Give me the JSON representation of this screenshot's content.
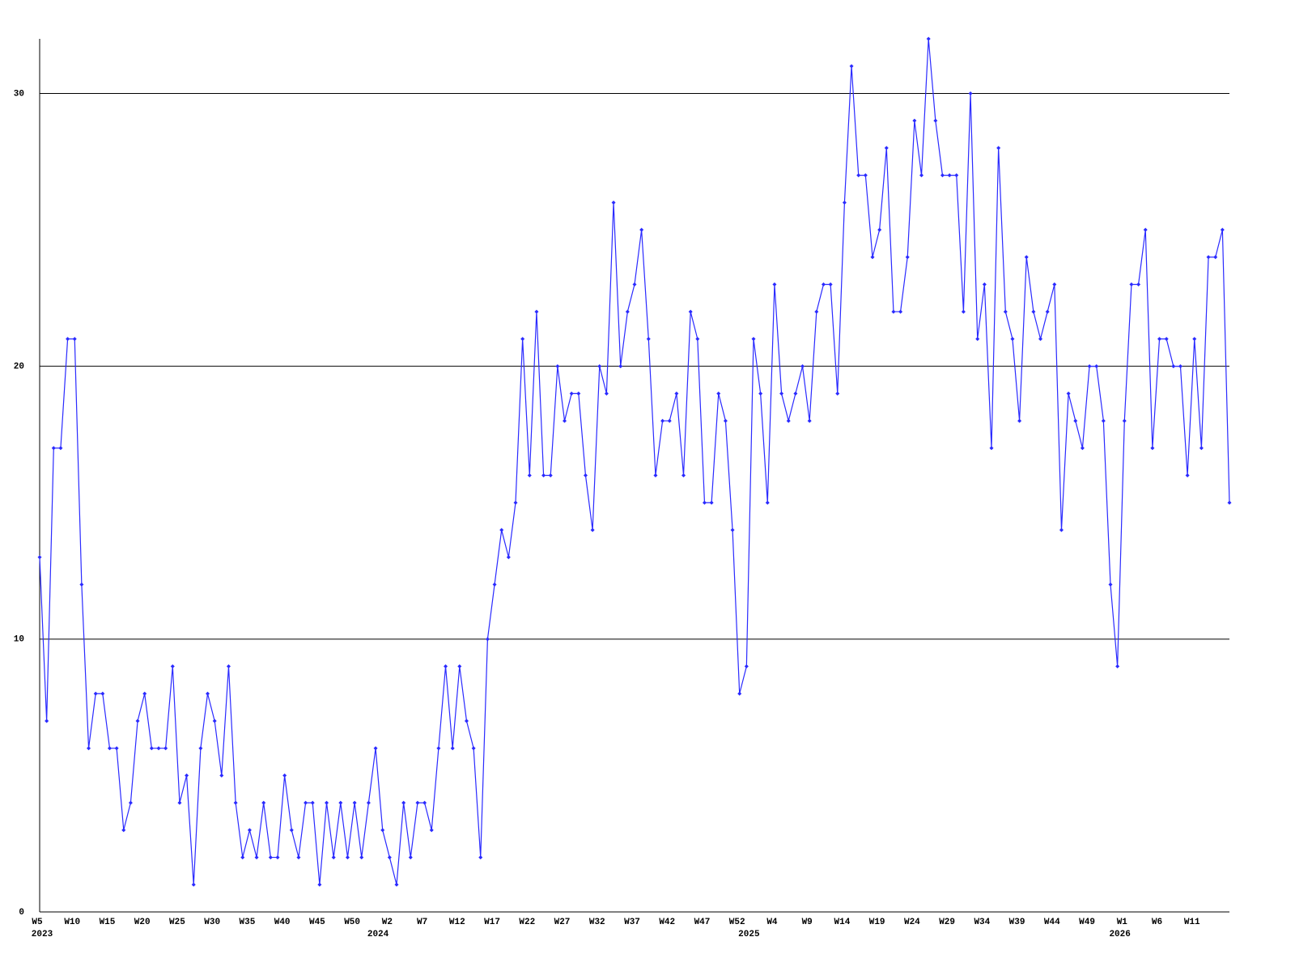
{
  "chart_data": {
    "type": "line",
    "categories": [
      "W5",
      null,
      null,
      null,
      null,
      "W10",
      null,
      null,
      null,
      null,
      "W15",
      null,
      null,
      null,
      null,
      "W20",
      null,
      null,
      null,
      null,
      "W25",
      null,
      null,
      null,
      null,
      "W30",
      null,
      null,
      null,
      null,
      "W35",
      null,
      null,
      null,
      null,
      "W40",
      null,
      null,
      null,
      null,
      "W45",
      null,
      null,
      null,
      null,
      "W50",
      null,
      null,
      null,
      null,
      "W2",
      null,
      null,
      null,
      null,
      "W7",
      null,
      null,
      null,
      null,
      "W12",
      null,
      null,
      null,
      null,
      "W17",
      null,
      null,
      null,
      null,
      "W22",
      null,
      null,
      null,
      null,
      "W27",
      null,
      null,
      null,
      null,
      "W32",
      null,
      null,
      null,
      null,
      "W37",
      null,
      null,
      null,
      null,
      "W42",
      null,
      null,
      null,
      null,
      "W47",
      null,
      null,
      null,
      null,
      "W52",
      null,
      null,
      null,
      null,
      "W4",
      null,
      null,
      null,
      null,
      "W9",
      null,
      null,
      null,
      null,
      "W14",
      null,
      null,
      null,
      null,
      "W19",
      null,
      null,
      null,
      null,
      "W24",
      null,
      null,
      null,
      null,
      "W29",
      null,
      null,
      null,
      null,
      "W34",
      null,
      null,
      null,
      null,
      "W39",
      null,
      null,
      null,
      null,
      "W44",
      null,
      null,
      null,
      null,
      "W49",
      null,
      null,
      null,
      null,
      "W1",
      null,
      null,
      null,
      null,
      "W6",
      null,
      null,
      null,
      null,
      "W11",
      null,
      null,
      null,
      null,
      null
    ],
    "x_years": [
      "2023",
      null,
      null,
      null,
      null,
      null,
      null,
      null,
      null,
      null,
      null,
      null,
      null,
      null,
      null,
      null,
      null,
      null,
      null,
      null,
      null,
      null,
      null,
      null,
      null,
      null,
      null,
      null,
      null,
      null,
      null,
      null,
      null,
      null,
      null,
      null,
      null,
      null,
      null,
      null,
      null,
      null,
      null,
      null,
      null,
      null,
      null,
      null,
      "2024",
      null,
      null,
      null,
      null,
      null,
      null,
      null,
      null,
      null,
      null,
      null,
      null,
      null,
      null,
      null,
      null,
      null,
      null,
      null,
      null,
      null,
      null,
      null,
      null,
      null,
      null,
      null,
      null,
      null,
      null,
      null,
      null,
      null,
      null,
      null,
      null,
      null,
      null,
      null,
      null,
      null,
      null,
      null,
      null,
      null,
      null,
      null,
      null,
      null,
      null,
      null,
      null,
      "2025",
      null,
      null,
      null,
      null,
      null,
      null,
      null,
      null,
      null,
      null,
      null,
      null,
      null,
      null,
      null,
      null,
      null,
      null,
      null,
      null,
      null,
      null,
      null,
      null,
      null,
      null,
      null,
      null,
      null,
      null,
      null,
      null,
      null,
      null,
      null,
      null,
      null,
      null,
      null,
      null,
      null,
      null,
      null,
      null,
      null,
      null,
      null,
      null,
      null,
      null,
      null,
      null,
      "2026",
      null,
      null,
      null,
      null,
      null,
      null,
      null,
      null,
      null,
      null,
      null,
      null,
      null,
      null,
      null,
      null
    ],
    "values": [
      13,
      7,
      17,
      17,
      21,
      21,
      12,
      6,
      8,
      8,
      6,
      6,
      3,
      4,
      7,
      8,
      6,
      6,
      6,
      9,
      4,
      5,
      1,
      6,
      8,
      7,
      5,
      9,
      4,
      2,
      3,
      2,
      4,
      2,
      2,
      5,
      3,
      2,
      4,
      4,
      1,
      4,
      2,
      4,
      2,
      4,
      2,
      4,
      6,
      3,
      2,
      1,
      4,
      2,
      4,
      4,
      3,
      6,
      9,
      6,
      9,
      7,
      6,
      2,
      10,
      12,
      14,
      13,
      15,
      21,
      16,
      22,
      16,
      16,
      20,
      18,
      19,
      19,
      16,
      14,
      20,
      19,
      26,
      20,
      22,
      23,
      25,
      21,
      16,
      18,
      18,
      19,
      16,
      22,
      21,
      15,
      15,
      19,
      18,
      14,
      8,
      9,
      21,
      19,
      15,
      23,
      19,
      18,
      19,
      20,
      18,
      22,
      23,
      23,
      19,
      26,
      31,
      27,
      27,
      24,
      25,
      28,
      22,
      22,
      24,
      29,
      27,
      32,
      29,
      27,
      27,
      27,
      22,
      30,
      21,
      23,
      17,
      28,
      22,
      21,
      18,
      24,
      22,
      21,
      22,
      23,
      14,
      19,
      18,
      17,
      20,
      20,
      18,
      12,
      9,
      18,
      23,
      23,
      25,
      17,
      21,
      21,
      20,
      20,
      16,
      21,
      17,
      24,
      24,
      25,
      15
    ],
    "color": "#2a2aff",
    "ylim": [
      0,
      32
    ],
    "yticks": [
      0,
      10,
      20,
      30
    ],
    "grid": true
  }
}
